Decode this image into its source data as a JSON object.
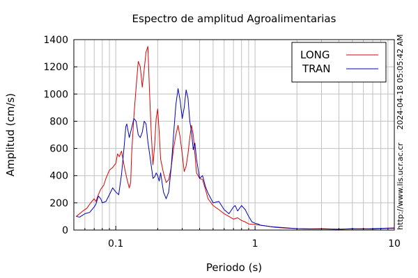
{
  "chart_data": {
    "type": "line",
    "title": "Espectro de amplitud Agroalimentarias",
    "xlabel": "Periodo (s)",
    "ylabel": "Amplitud (cm/s)",
    "x_scale": "log",
    "xlim": [
      0.05,
      10
    ],
    "ylim": [
      0,
      1400
    ],
    "x_ticks": [
      0.1,
      1,
      10
    ],
    "x_tick_labels": [
      "0.1",
      "1",
      "10"
    ],
    "y_ticks": [
      0,
      200,
      400,
      600,
      800,
      1000,
      1200,
      1400
    ],
    "y_tick_labels": [
      "0",
      "200",
      "400",
      "600",
      "800",
      "1000",
      "1200",
      "1400"
    ],
    "grid": true,
    "legend_position": "top-right",
    "timestamp": "2024-04-18 05:05:42 AM",
    "url": "http://www.lis.ucr.ac.cr",
    "colors": {
      "LONG": "#dd0000",
      "TRAN": "#0000bb"
    },
    "series": [
      {
        "name": "LONG",
        "color": "#dd0000",
        "points": [
          [
            0.052,
            100
          ],
          [
            0.055,
            120
          ],
          [
            0.058,
            140
          ],
          [
            0.062,
            160
          ],
          [
            0.066,
            200
          ],
          [
            0.07,
            230
          ],
          [
            0.072,
            210
          ],
          [
            0.075,
            260
          ],
          [
            0.078,
            300
          ],
          [
            0.082,
            330
          ],
          [
            0.085,
            380
          ],
          [
            0.09,
            440
          ],
          [
            0.095,
            460
          ],
          [
            0.1,
            490
          ],
          [
            0.103,
            560
          ],
          [
            0.106,
            540
          ],
          [
            0.11,
            580
          ],
          [
            0.115,
            470
          ],
          [
            0.12,
            380
          ],
          [
            0.125,
            310
          ],
          [
            0.128,
            350
          ],
          [
            0.13,
            560
          ],
          [
            0.135,
            840
          ],
          [
            0.14,
            1050
          ],
          [
            0.145,
            1240
          ],
          [
            0.15,
            1200
          ],
          [
            0.155,
            1050
          ],
          [
            0.16,
            1180
          ],
          [
            0.165,
            1310
          ],
          [
            0.17,
            1350
          ],
          [
            0.175,
            1000
          ],
          [
            0.18,
            700
          ],
          [
            0.185,
            480
          ],
          [
            0.19,
            620
          ],
          [
            0.195,
            820
          ],
          [
            0.2,
            890
          ],
          [
            0.205,
            720
          ],
          [
            0.21,
            520
          ],
          [
            0.22,
            420
          ],
          [
            0.23,
            350
          ],
          [
            0.24,
            370
          ],
          [
            0.25,
            460
          ],
          [
            0.26,
            600
          ],
          [
            0.27,
            700
          ],
          [
            0.28,
            770
          ],
          [
            0.29,
            680
          ],
          [
            0.3,
            560
          ],
          [
            0.31,
            430
          ],
          [
            0.32,
            470
          ],
          [
            0.33,
            560
          ],
          [
            0.34,
            680
          ],
          [
            0.35,
            770
          ],
          [
            0.36,
            700
          ],
          [
            0.38,
            420
          ],
          [
            0.4,
            380
          ],
          [
            0.42,
            370
          ],
          [
            0.44,
            300
          ],
          [
            0.46,
            230
          ],
          [
            0.5,
            180
          ],
          [
            0.55,
            150
          ],
          [
            0.6,
            120
          ],
          [
            0.65,
            100
          ],
          [
            0.7,
            80
          ],
          [
            0.75,
            90
          ],
          [
            0.8,
            70
          ],
          [
            0.85,
            60
          ],
          [
            0.9,
            45
          ],
          [
            1.0,
            40
          ],
          [
            1.1,
            35
          ],
          [
            1.2,
            30
          ],
          [
            1.4,
            20
          ],
          [
            1.6,
            15
          ],
          [
            2.0,
            10
          ],
          [
            2.5,
            8
          ],
          [
            3.0,
            10
          ],
          [
            4.0,
            6
          ],
          [
            5.0,
            8
          ],
          [
            6.0,
            10
          ],
          [
            7.0,
            7
          ],
          [
            8.0,
            10
          ],
          [
            9.0,
            12
          ],
          [
            10.0,
            12
          ]
        ]
      },
      {
        "name": "TRAN",
        "color": "#0000bb",
        "points": [
          [
            0.052,
            100
          ],
          [
            0.055,
            95
          ],
          [
            0.058,
            110
          ],
          [
            0.06,
            120
          ],
          [
            0.065,
            130
          ],
          [
            0.07,
            170
          ],
          [
            0.072,
            190
          ],
          [
            0.075,
            250
          ],
          [
            0.078,
            230
          ],
          [
            0.08,
            200
          ],
          [
            0.085,
            210
          ],
          [
            0.09,
            260
          ],
          [
            0.095,
            310
          ],
          [
            0.1,
            280
          ],
          [
            0.105,
            260
          ],
          [
            0.11,
            410
          ],
          [
            0.115,
            620
          ],
          [
            0.118,
            760
          ],
          [
            0.12,
            780
          ],
          [
            0.125,
            680
          ],
          [
            0.13,
            750
          ],
          [
            0.135,
            820
          ],
          [
            0.14,
            800
          ],
          [
            0.145,
            700
          ],
          [
            0.15,
            680
          ],
          [
            0.155,
            720
          ],
          [
            0.16,
            800
          ],
          [
            0.165,
            780
          ],
          [
            0.17,
            650
          ],
          [
            0.175,
            560
          ],
          [
            0.18,
            470
          ],
          [
            0.185,
            380
          ],
          [
            0.19,
            390
          ],
          [
            0.195,
            420
          ],
          [
            0.2,
            400
          ],
          [
            0.205,
            360
          ],
          [
            0.21,
            420
          ],
          [
            0.22,
            280
          ],
          [
            0.23,
            230
          ],
          [
            0.24,
            280
          ],
          [
            0.25,
            460
          ],
          [
            0.26,
            700
          ],
          [
            0.27,
            920
          ],
          [
            0.28,
            1040
          ],
          [
            0.29,
            950
          ],
          [
            0.3,
            820
          ],
          [
            0.31,
            900
          ],
          [
            0.32,
            1030
          ],
          [
            0.33,
            970
          ],
          [
            0.34,
            800
          ],
          [
            0.35,
            720
          ],
          [
            0.36,
            590
          ],
          [
            0.37,
            640
          ],
          [
            0.38,
            520
          ],
          [
            0.4,
            380
          ],
          [
            0.42,
            400
          ],
          [
            0.44,
            320
          ],
          [
            0.46,
            270
          ],
          [
            0.5,
            200
          ],
          [
            0.55,
            210
          ],
          [
            0.6,
            150
          ],
          [
            0.65,
            120
          ],
          [
            0.7,
            170
          ],
          [
            0.72,
            180
          ],
          [
            0.75,
            140
          ],
          [
            0.8,
            180
          ],
          [
            0.85,
            150
          ],
          [
            0.9,
            100
          ],
          [
            0.95,
            60
          ],
          [
            1.0,
            50
          ],
          [
            1.05,
            45
          ],
          [
            1.1,
            35
          ],
          [
            1.2,
            30
          ],
          [
            1.3,
            25
          ],
          [
            1.5,
            20
          ],
          [
            2.0,
            10
          ],
          [
            2.5,
            8
          ],
          [
            3.0,
            8
          ],
          [
            4.0,
            6
          ],
          [
            5.0,
            10
          ],
          [
            6.0,
            8
          ],
          [
            7.0,
            10
          ],
          [
            8.0,
            12
          ],
          [
            9.0,
            14
          ],
          [
            10.0,
            15
          ]
        ]
      }
    ]
  }
}
